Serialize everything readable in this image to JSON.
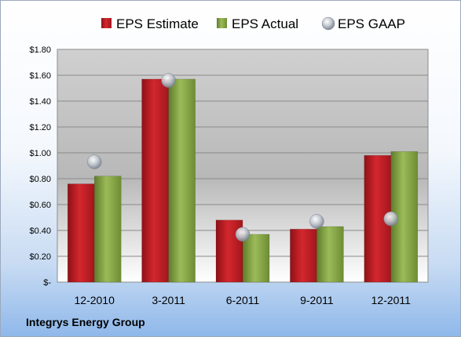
{
  "chart_data": {
    "type": "bar",
    "categories": [
      "12-2010",
      "3-2011",
      "6-2011",
      "9-2011",
      "12-2011"
    ],
    "series": [
      {
        "name": "EPS Estimate",
        "kind": "bar",
        "color": "#c8242b",
        "values": [
          0.76,
          1.57,
          0.48,
          0.41,
          0.98
        ]
      },
      {
        "name": "EPS Actual",
        "kind": "bar",
        "color": "#89a94a",
        "values": [
          0.82,
          1.57,
          0.37,
          0.43,
          1.01
        ]
      },
      {
        "name": "EPS GAAP",
        "kind": "marker",
        "color": "#b7c0cc",
        "values": [
          0.93,
          1.56,
          0.37,
          0.47,
          0.49
        ]
      }
    ],
    "yticks": [
      0,
      0.2,
      0.4,
      0.6,
      0.8,
      1.0,
      1.2,
      1.4,
      1.6,
      1.8
    ],
    "ytick_labels": [
      "$-",
      "$0.20",
      "$0.40",
      "$0.60",
      "$0.80",
      "$1.00",
      "$1.20",
      "$1.40",
      "$1.60",
      "$1.80"
    ],
    "ylim": [
      0,
      1.8
    ],
    "grid": true,
    "legend_position": "top"
  },
  "footer": {
    "company": "Integrys Energy Group"
  }
}
